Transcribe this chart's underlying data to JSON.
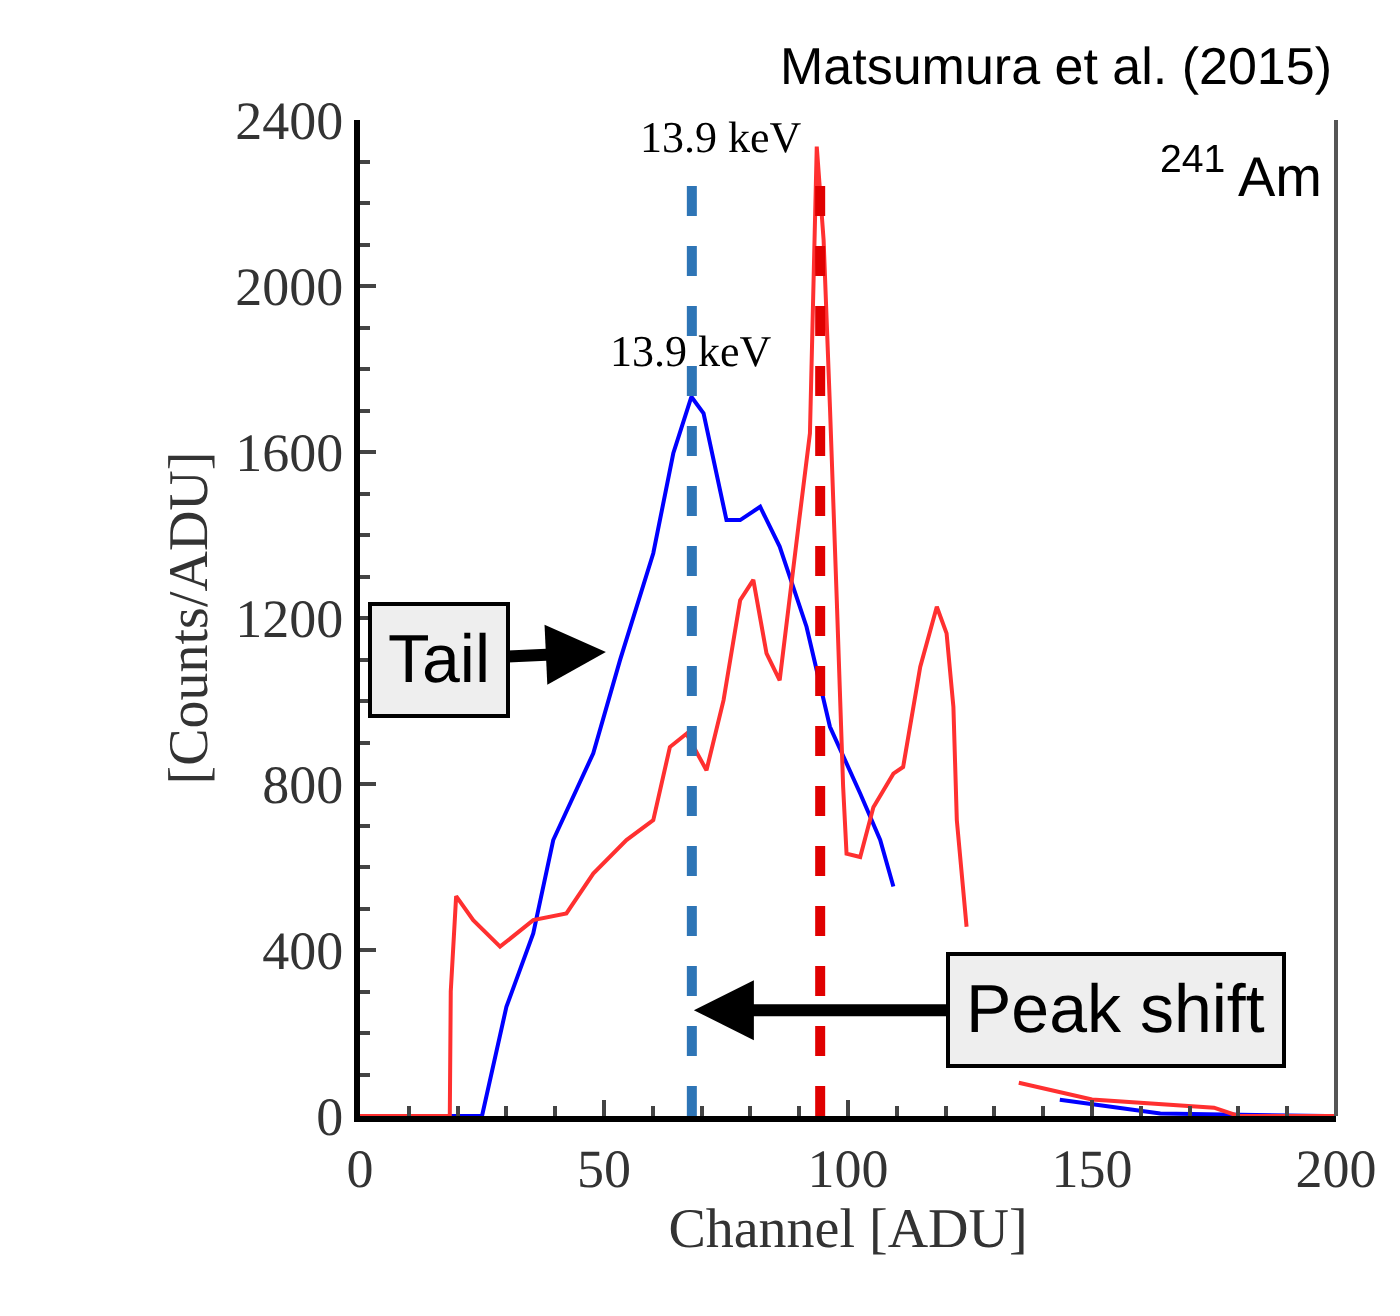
{
  "chart_data": {
    "type": "line",
    "xlabel": "Channel [ADU]",
    "ylabel": "[Counts/ADU]",
    "xlim": [
      0,
      200
    ],
    "xticks": [
      0,
      50,
      100,
      150,
      200
    ],
    "ylim": [
      0,
      2400
    ],
    "yticks": [
      0,
      400,
      800,
      1200,
      1600,
      2000,
      2400
    ],
    "grid": false,
    "legend": false,
    "marker": "none",
    "line_style": "solid",
    "series": [
      {
        "color": "#0000ff",
        "x": [
          0,
          25,
          30,
          35.5,
          39.6,
          47.8,
          53.3,
          60.1,
          64.2,
          67.9,
          70.4,
          75.1,
          77.9,
          82,
          86,
          91.5,
          96.3,
          102.5,
          106.6,
          109.3,
          116.1,
          127,
          143.4,
          164,
          198,
          200
        ],
        "values": [
          0,
          0,
          263,
          440,
          665,
          874,
          1099,
          1356,
          1597,
          1733,
          1693,
          1436,
          1436,
          1468,
          1372,
          1179,
          938,
          777,
          665,
          553,
          null,
          null,
          39,
          6,
          0,
          0
        ]
      },
      {
        "color": "#ff3030",
        "x": [
          0,
          18.4,
          18.6,
          19.7,
          23.2,
          28.7,
          35.5,
          42.3,
          47.8,
          54.6,
          60.1,
          63.5,
          66.9,
          71,
          74.5,
          77.9,
          80.6,
          83.3,
          86,
          90,
          92.2,
          93.6,
          95,
          96.3,
          97.7,
          99,
          99.7,
          102.5,
          105.2,
          109.3,
          111.3,
          114.8,
          118.2,
          120.2,
          121.6,
          122.3,
          124.3,
          127,
          135,
          150,
          175,
          180,
          200
        ],
        "values": [
          0,
          0,
          300,
          530,
          472,
          408,
          472,
          488,
          584,
          665,
          713,
          889,
          921,
          833,
          1002,
          1243,
          1292,
          1115,
          1050,
          1436,
          1645,
          2336,
          2111,
          1709,
          1243,
          794,
          632,
          624,
          744,
          825,
          841,
          1082,
          1227,
          1163,
          986,
          713,
          456,
          null,
          80,
          40,
          20,
          0,
          0
        ]
      }
    ],
    "ref_lines": [
      {
        "axis": "x",
        "value": 68,
        "color": "#2e75b6",
        "line_style": "dashed"
      },
      {
        "axis": "x",
        "value": 94.3,
        "color": "#e00000",
        "line_style": "dashed"
      }
    ],
    "annotations": [
      "Matsumura et al. (2015)",
      "$^{241}$ Am",
      {
        "text": "13.9 keV",
        "x": 67.9,
        "y": 1733
      },
      {
        "text": "13.9 keV",
        "x": 93.6,
        "y": 2336
      },
      "Tail",
      {
        "text": "Peak shift",
        "x": 67.6,
        "y": 255
      }
    ]
  }
}
